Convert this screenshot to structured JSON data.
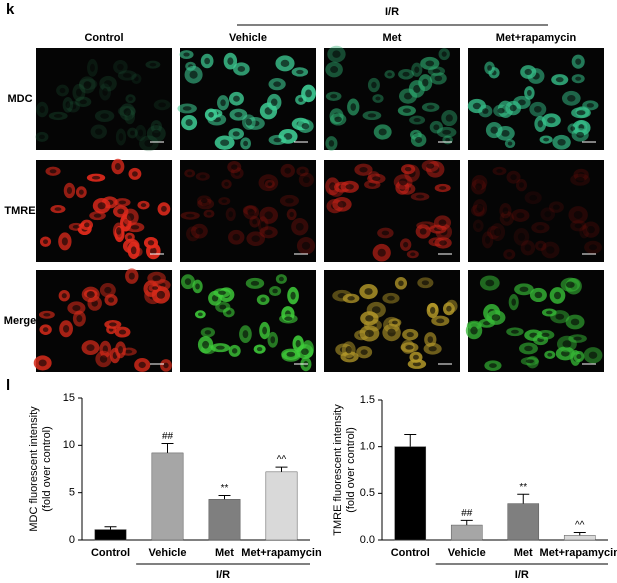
{
  "panel_k": {
    "label": "k",
    "group_label": "I/R",
    "columns": [
      "Control",
      "Vehicle",
      "Met",
      "Met+rapamycin"
    ],
    "rows": [
      "MDC",
      "TMRE",
      "Merge"
    ]
  },
  "panel_l": {
    "label": "l"
  },
  "chart_data": [
    {
      "type": "bar",
      "ylabel": [
        "MDC fluorescent intensity",
        "(fold over control)"
      ],
      "categories": [
        "Control",
        "Vehicle",
        "Met",
        "Met+rapamycin"
      ],
      "values": [
        1.1,
        9.2,
        4.3,
        7.2
      ],
      "errors": [
        0.3,
        1.0,
        0.4,
        0.5
      ],
      "annotations": [
        null,
        "##",
        "**",
        "^^"
      ],
      "colors": [
        "#000000",
        "#a6a6a6",
        "#7f7f7f",
        "#d9d9d9"
      ],
      "group_label": "I/R",
      "ylim": [
        0,
        15
      ],
      "yticks": [
        0,
        5,
        10,
        15
      ]
    },
    {
      "type": "bar",
      "ylabel": [
        "TMRE fluorescent intensity",
        "(fold over control)"
      ],
      "categories": [
        "Control",
        "Vehicle",
        "Met",
        "Met+rapamycin"
      ],
      "values": [
        1.0,
        0.16,
        0.39,
        0.05
      ],
      "errors": [
        0.13,
        0.05,
        0.1,
        0.03
      ],
      "annotations": [
        null,
        "##",
        "**",
        "^^"
      ],
      "colors": [
        "#000000",
        "#a6a6a6",
        "#7f7f7f",
        "#d9d9d9"
      ],
      "group_label": "I/R",
      "ylim": [
        0,
        1.5
      ],
      "yticks": [
        {
          "value": 0,
          "label": "0.0"
        },
        0.5,
        {
          "value": 1,
          "label": "1.0"
        },
        1.5
      ]
    }
  ]
}
